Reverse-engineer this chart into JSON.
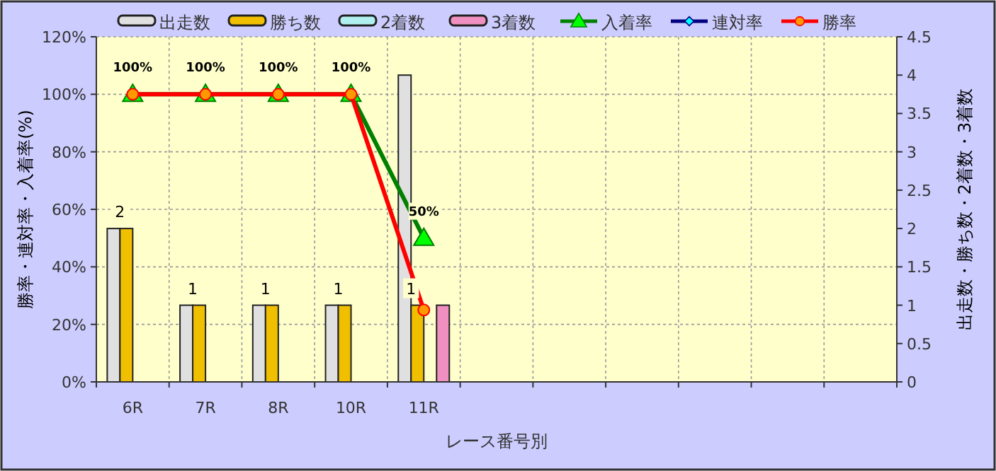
{
  "chart_data": {
    "type": "bar",
    "xlabel": "レース番号別",
    "ylabel": "勝率・連対率・入着率(%)",
    "y2label": "出走数・勝ち数・2着数・3着数",
    "categories": [
      "6R",
      "7R",
      "8R",
      "10R",
      "11R",
      null,
      null,
      null,
      null,
      null,
      null
    ],
    "ylim": [
      0,
      120
    ],
    "yticks": [
      {
        "value": 0,
        "label": "0%"
      },
      {
        "value": 20,
        "label": "20%"
      },
      {
        "value": 40,
        "label": "40%"
      },
      {
        "value": 60,
        "label": "60%"
      },
      {
        "value": 80,
        "label": "80%"
      },
      {
        "value": 100,
        "label": "100%"
      },
      {
        "value": 120,
        "label": "120%"
      }
    ],
    "y2lim": [
      0,
      4.5
    ],
    "y2ticks": [
      0,
      0.5,
      1,
      1.5,
      2,
      2.5,
      3,
      3.5,
      4,
      4.5
    ],
    "grid": true,
    "legend": "top",
    "series": [
      {
        "name": "出走数",
        "axis": "y2",
        "color": "#e0e0e0",
        "values": [
          2,
          1,
          1,
          1,
          4,
          null,
          null,
          null,
          null,
          null,
          null
        ]
      },
      {
        "name": "勝ち数",
        "axis": "y2",
        "color": "#f0c000",
        "values": [
          2,
          1,
          1,
          1,
          1,
          null,
          null,
          null,
          null,
          null,
          null
        ],
        "value_labels": [
          "2",
          "1",
          "1",
          "1",
          "1",
          null,
          null,
          null,
          null,
          null,
          null
        ]
      },
      {
        "name": "2着数",
        "axis": "y2",
        "color": "#b0f0f0",
        "values": [
          0,
          0,
          0,
          0,
          0,
          null,
          null,
          null,
          null,
          null,
          null
        ]
      },
      {
        "name": "3着数",
        "axis": "y2",
        "color": "#f090c0",
        "values": [
          0,
          0,
          0,
          0,
          1,
          null,
          null,
          null,
          null,
          null,
          null
        ]
      },
      {
        "name": "入着率",
        "type": "line",
        "color": "#008000",
        "marker": "triangle",
        "values": [
          100,
          100,
          100,
          100,
          50,
          null,
          null,
          null,
          null,
          null,
          null
        ],
        "value_labels": [
          "100%",
          "100%",
          "100%",
          "100%",
          "50%",
          null,
          null,
          null,
          null,
          null,
          null
        ]
      },
      {
        "name": "連対率",
        "type": "line",
        "color": "#000080",
        "marker": "diamond",
        "values": [
          null,
          null,
          null,
          null,
          null,
          null,
          null,
          null,
          null,
          null,
          null
        ]
      },
      {
        "name": "勝率",
        "type": "line",
        "color": "#ff0000",
        "marker": "circle",
        "values": [
          100,
          100,
          100,
          100,
          25,
          null,
          null,
          null,
          null,
          null,
          null
        ]
      }
    ]
  }
}
